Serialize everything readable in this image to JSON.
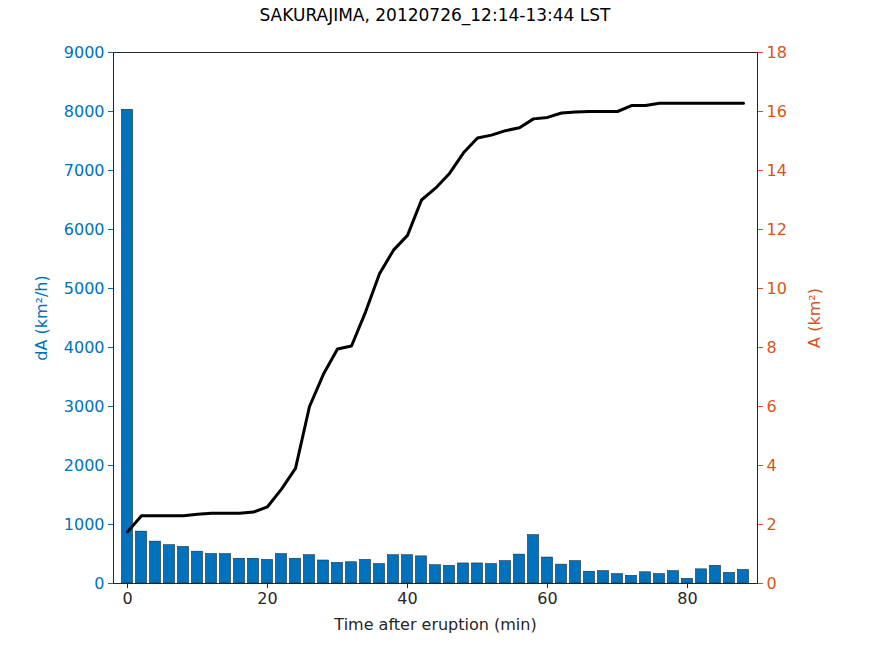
{
  "chart_data": {
    "type": "bar",
    "title": "SAKURAJIMA, 20120726_12:14-13:44 LST",
    "x_label": "Time after eruption (min)",
    "x": [
      0,
      2,
      4,
      6,
      8,
      10,
      12,
      14,
      16,
      18,
      20,
      22,
      24,
      26,
      28,
      30,
      32,
      34,
      36,
      38,
      40,
      42,
      44,
      46,
      48,
      50,
      52,
      54,
      56,
      58,
      60,
      62,
      64,
      66,
      68,
      70,
      72,
      74,
      76,
      78,
      80,
      82,
      84,
      86,
      88
    ],
    "xlim": [
      -2,
      90
    ],
    "xticks": [
      0,
      20,
      40,
      60,
      80
    ],
    "ylim": [
      0,
      9000
    ],
    "yticks": [
      0,
      1000,
      2000,
      3000,
      4000,
      5000,
      6000,
      7000,
      8000,
      9000
    ],
    "y2lim": [
      0,
      18
    ],
    "y2ticks": [
      0,
      2,
      4,
      6,
      8,
      10,
      12,
      14,
      16,
      18
    ],
    "grid": false,
    "series": [
      {
        "name": "dA (km²/h)",
        "type": "bar",
        "color": "#0072bd",
        "values": [
          8030,
          880,
          710,
          650,
          620,
          540,
          500,
          500,
          420,
          420,
          400,
          500,
          420,
          480,
          390,
          350,
          360,
          400,
          330,
          480,
          480,
          460,
          310,
          300,
          340,
          340,
          330,
          380,
          490,
          820,
          440,
          320,
          380,
          200,
          210,
          160,
          130,
          190,
          160,
          210,
          80,
          240,
          300,
          180,
          230
        ]
      },
      {
        "name": "A (km²)",
        "type": "line",
        "axis": "y2",
        "color": "#000000",
        "values": [
          1.75,
          2.3,
          2.3,
          2.3,
          2.3,
          2.35,
          2.38,
          2.38,
          2.38,
          2.42,
          2.6,
          3.2,
          3.9,
          6.0,
          7.1,
          7.95,
          8.05,
          9.2,
          10.5,
          11.3,
          11.8,
          13.0,
          13.4,
          13.9,
          14.6,
          15.1,
          15.2,
          15.35,
          15.45,
          15.75,
          15.8,
          15.95,
          15.98,
          16.0,
          16.0,
          16.0,
          16.2,
          16.2,
          16.28,
          16.28,
          16.28,
          16.28,
          16.28,
          16.28,
          16.28
        ]
      }
    ]
  }
}
